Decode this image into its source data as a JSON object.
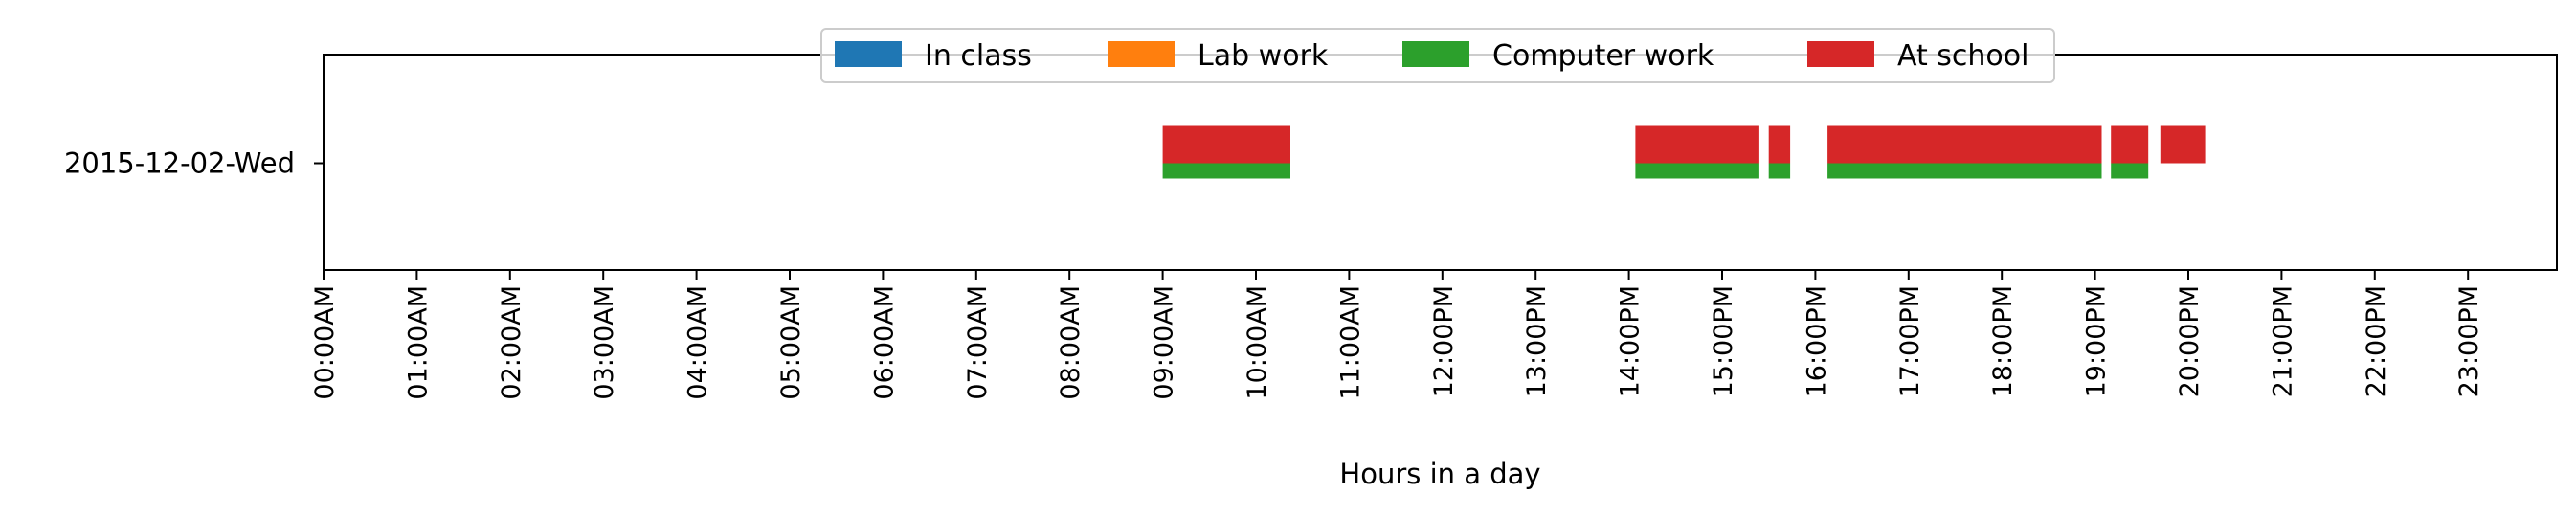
{
  "chart_data": {
    "type": "timeline",
    "title": "",
    "xlabel": "Hours in a day",
    "ylabel": "",
    "xlim": [
      0,
      24
    ],
    "x_ticks": [
      {
        "hour": 0,
        "label": "00:00AM"
      },
      {
        "hour": 1,
        "label": "01:00AM"
      },
      {
        "hour": 2,
        "label": "02:00AM"
      },
      {
        "hour": 3,
        "label": "03:00AM"
      },
      {
        "hour": 4,
        "label": "04:00AM"
      },
      {
        "hour": 5,
        "label": "05:00AM"
      },
      {
        "hour": 6,
        "label": "06:00AM"
      },
      {
        "hour": 7,
        "label": "07:00AM"
      },
      {
        "hour": 8,
        "label": "08:00AM"
      },
      {
        "hour": 9,
        "label": "09:00AM"
      },
      {
        "hour": 10,
        "label": "10:00AM"
      },
      {
        "hour": 11,
        "label": "11:00AM"
      },
      {
        "hour": 12,
        "label": "12:00PM"
      },
      {
        "hour": 13,
        "label": "13:00PM"
      },
      {
        "hour": 14,
        "label": "14:00PM"
      },
      {
        "hour": 15,
        "label": "15:00PM"
      },
      {
        "hour": 16,
        "label": "16:00PM"
      },
      {
        "hour": 17,
        "label": "17:00PM"
      },
      {
        "hour": 18,
        "label": "18:00PM"
      },
      {
        "hour": 19,
        "label": "19:00PM"
      },
      {
        "hour": 20,
        "label": "20:00PM"
      },
      {
        "hour": 21,
        "label": "21:00PM"
      },
      {
        "hour": 22,
        "label": "22:00PM"
      },
      {
        "hour": 23,
        "label": "23:00PM"
      }
    ],
    "categories": [
      "2015-12-02-Wed"
    ],
    "legend_position": "top-center",
    "grid": false,
    "series": [
      {
        "name": "In class",
        "color": "#1f77b4",
        "intervals": []
      },
      {
        "name": "Lab work",
        "color": "#ff7f0e",
        "intervals": []
      },
      {
        "name": "Computer work",
        "color": "#2ca02c",
        "intervals": [
          {
            "day": "2015-12-02-Wed",
            "start": 9.0,
            "end": 10.37
          },
          {
            "day": "2015-12-02-Wed",
            "start": 14.07,
            "end": 15.4
          },
          {
            "day": "2015-12-02-Wed",
            "start": 15.5,
            "end": 15.73
          },
          {
            "day": "2015-12-02-Wed",
            "start": 16.13,
            "end": 19.07
          },
          {
            "day": "2015-12-02-Wed",
            "start": 19.17,
            "end": 19.57
          }
        ]
      },
      {
        "name": "At school",
        "color": "#d62728",
        "intervals": [
          {
            "day": "2015-12-02-Wed",
            "start": 9.0,
            "end": 10.37
          },
          {
            "day": "2015-12-02-Wed",
            "start": 14.07,
            "end": 15.4
          },
          {
            "day": "2015-12-02-Wed",
            "start": 15.5,
            "end": 15.73
          },
          {
            "day": "2015-12-02-Wed",
            "start": 16.13,
            "end": 19.07
          },
          {
            "day": "2015-12-02-Wed",
            "start": 19.17,
            "end": 19.57
          },
          {
            "day": "2015-12-02-Wed",
            "start": 19.7,
            "end": 20.18
          }
        ]
      }
    ]
  }
}
